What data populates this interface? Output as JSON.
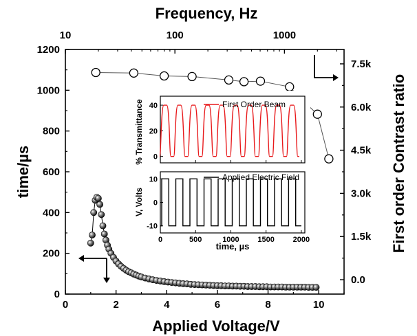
{
  "chart_data": [
    {
      "type": "scatter",
      "xlabel": "Applied Voltage/V",
      "ylabel": "time/µs",
      "y2label": "First order Contrast ratio",
      "top_xlabel": "Frequency, Hz",
      "xlim": [
        0,
        11
      ],
      "ylim": [
        0,
        1200
      ],
      "y2lim": [
        -500,
        8000
      ],
      "top_xlim_log": [
        10,
        3500
      ],
      "x_ticks": [
        "0",
        "2",
        "4",
        "6",
        "8",
        "10"
      ],
      "y_ticks": [
        "0",
        "200",
        "400",
        "600",
        "800",
        "1000",
        "1200"
      ],
      "y2_ticks": [
        "0.0",
        "1.5k",
        "3.0k",
        "4.5k",
        "6.0k",
        "7.5k"
      ],
      "top_ticks": [
        "10",
        "100",
        "1000"
      ],
      "series": [
        {
          "axis": "left",
          "marker": "filled-sphere",
          "x": [
            1.0,
            1.06,
            1.12,
            1.18,
            1.24,
            1.3,
            1.36,
            1.42,
            1.48,
            1.54,
            1.6,
            1.66,
            1.72,
            1.8,
            1.9,
            2.0,
            2.1,
            2.2,
            2.3,
            2.4,
            2.5,
            2.6,
            2.7,
            2.8,
            2.9,
            3.0,
            3.15,
            3.3,
            3.45,
            3.6,
            3.75,
            3.9,
            4.05,
            4.2,
            4.35,
            4.5,
            4.65,
            4.8,
            4.95,
            5.1,
            5.25,
            5.4,
            5.55,
            5.7,
            5.85,
            6.0,
            6.15,
            6.3,
            6.45,
            6.6,
            6.75,
            6.9,
            7.05,
            7.2,
            7.35,
            7.5,
            7.65,
            7.8,
            7.95,
            8.1,
            8.25,
            8.4,
            8.55,
            8.7,
            8.85,
            9.0,
            9.15,
            9.3,
            9.45,
            9.6,
            9.75,
            9.9
          ],
          "y": [
            250,
            290,
            400,
            460,
            475,
            470,
            440,
            390,
            335,
            295,
            265,
            240,
            220,
            200,
            180,
            162,
            148,
            136,
            126,
            117,
            110,
            104,
            98,
            93,
            88,
            84,
            79,
            74,
            70,
            67,
            64,
            61,
            59,
            57,
            55,
            53,
            51,
            50,
            48,
            47,
            46,
            45,
            44,
            43,
            42,
            41,
            41,
            40,
            40,
            39,
            39,
            38,
            38,
            37,
            37,
            37,
            36,
            36,
            36,
            35,
            35,
            35,
            35,
            34,
            34,
            34,
            34,
            34,
            34,
            33,
            33,
            33
          ]
        },
        {
          "axis": "right",
          "marker": "open-circle",
          "x": [
            1.2,
            2.7,
            3.9,
            5.0,
            6.45,
            7.05,
            7.7,
            8.85,
            9.4,
            9.95,
            10.4
          ],
          "y": [
            7200,
            7180,
            7080,
            7060,
            6940,
            6880,
            6900,
            6700,
            6200,
            5750,
            4200
          ]
        }
      ],
      "arrows": [
        {
          "direction": "left",
          "axis": "left"
        },
        {
          "direction": "right",
          "axis": "right"
        }
      ]
    },
    {
      "type": "line",
      "inset": true,
      "title": "",
      "xlabel": "time, µs",
      "xlim": [
        0,
        2050
      ],
      "x_ticks": [
        "0",
        "500",
        "1000",
        "1500",
        "2000"
      ],
      "panels": [
        {
          "name": "First Order Beam",
          "ylabel": "% Transmittance",
          "ylim": [
            -5,
            47
          ],
          "y_ticks": [
            "0",
            "20",
            "40"
          ],
          "color": "#e8191b",
          "period_us": 200,
          "high": 40,
          "low": 0,
          "cycles": 10
        },
        {
          "name": "Applied Electric Field",
          "ylabel": "V, Volts",
          "ylim": [
            -13,
            13
          ],
          "y_ticks": [
            "-10",
            "0",
            "10"
          ],
          "color": "#000000",
          "period_us": 200,
          "high": 10,
          "low": -10,
          "cycles": 10
        }
      ]
    }
  ]
}
